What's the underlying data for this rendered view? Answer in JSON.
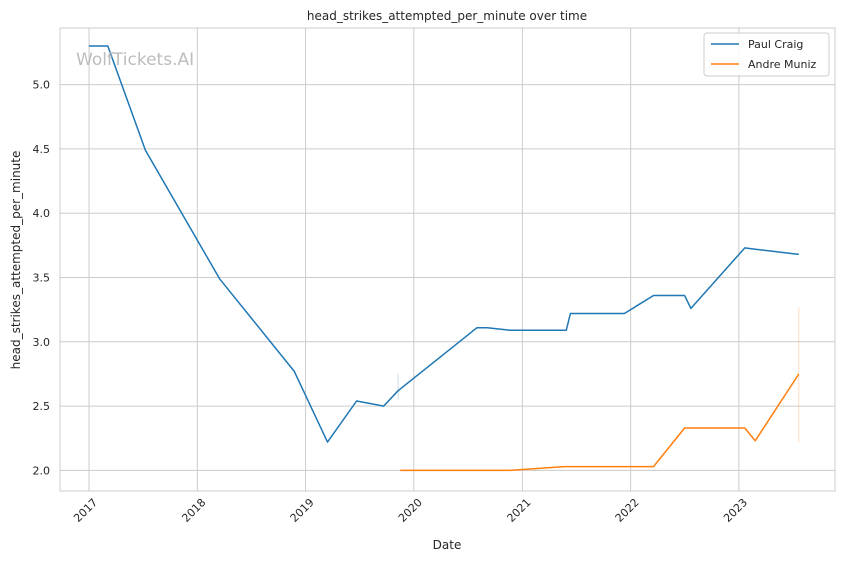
{
  "chart_data": {
    "type": "line",
    "title": "head_strikes_attempted_per_minute over time",
    "xlabel": "Date",
    "ylabel": "head_strikes_attempted_per_minute",
    "watermark": "WolfTickets.AI",
    "x_tick_labels": [
      "2017",
      "2018",
      "2019",
      "2020",
      "2021",
      "2022",
      "2023"
    ],
    "y_tick_labels": [
      "2.0",
      "2.5",
      "3.0",
      "3.5",
      "4.0",
      "4.5",
      "5.0"
    ],
    "y_ticks": [
      2.0,
      2.5,
      3.0,
      3.5,
      4.0,
      4.5,
      5.0
    ],
    "xlim": [
      "2016-09-25",
      "2023-11-21"
    ],
    "ylim": [
      1.84,
      5.44
    ],
    "grid": true,
    "legend_position": "top-right",
    "series": [
      {
        "name": "Paul Craig",
        "color": "#1f77b4",
        "points": [
          [
            "2016-12-31",
            5.3
          ],
          [
            "2017-03-05",
            5.3
          ],
          [
            "2017-07-10",
            4.49
          ],
          [
            "2018-03-17",
            3.49
          ],
          [
            "2018-11-24",
            2.77
          ],
          [
            "2019-03-16",
            2.22
          ],
          [
            "2019-06-22",
            2.54
          ],
          [
            "2019-09-21",
            2.5
          ],
          [
            "2019-11-09",
            2.62
          ],
          [
            "2020-08-01",
            3.11
          ],
          [
            "2020-09-05",
            3.11
          ],
          [
            "2020-11-21",
            3.09
          ],
          [
            "2021-05-29",
            3.09
          ],
          [
            "2021-06-12",
            3.22
          ],
          [
            "2021-12-11",
            3.22
          ],
          [
            "2022-03-19",
            3.36
          ],
          [
            "2022-07-02",
            3.36
          ],
          [
            "2022-07-23",
            3.26
          ],
          [
            "2023-01-21",
            3.73
          ],
          [
            "2023-02-25",
            3.72
          ],
          [
            "2023-07-22",
            3.68
          ]
        ]
      },
      {
        "name": "Andre Muniz",
        "color": "#ff7f0e",
        "points": [
          [
            "2019-11-16",
            2.0
          ],
          [
            "2020-11-21",
            2.0
          ],
          [
            "2021-05-22",
            2.03
          ],
          [
            "2021-12-11",
            2.03
          ],
          [
            "2022-03-19",
            2.03
          ],
          [
            "2022-07-02",
            2.33
          ],
          [
            "2023-01-21",
            2.33
          ],
          [
            "2023-02-25",
            2.23
          ],
          [
            "2023-07-22",
            2.75
          ]
        ]
      }
    ],
    "faint_bands": [
      {
        "series": "Paul Craig",
        "x": "2019-11-09",
        "y_range": [
          2.55,
          2.75
        ]
      },
      {
        "series": "Andre Muniz",
        "x": "2023-07-22",
        "y_range": [
          2.22,
          3.27
        ]
      }
    ]
  }
}
